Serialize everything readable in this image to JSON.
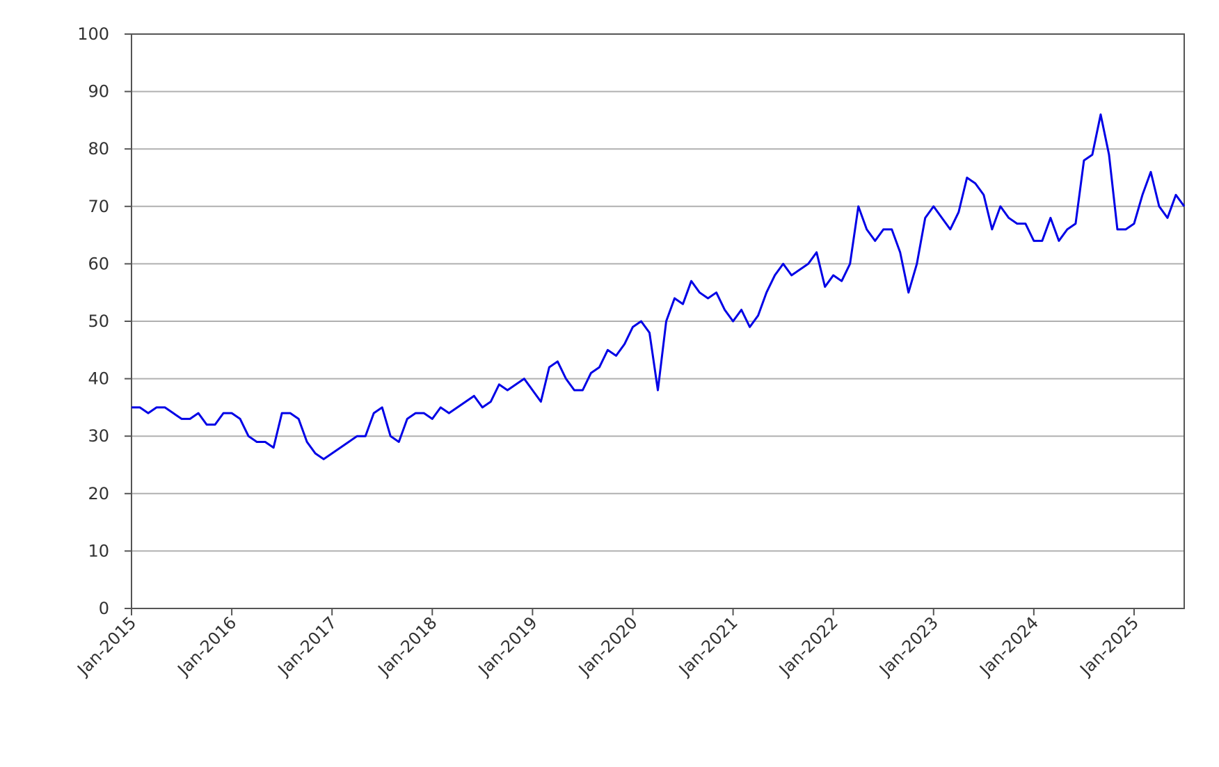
{
  "chart_data": {
    "type": "line",
    "x": [
      "2015-01",
      "2015-02",
      "2015-03",
      "2015-04",
      "2015-05",
      "2015-06",
      "2015-07",
      "2015-08",
      "2015-09",
      "2015-10",
      "2015-11",
      "2015-12",
      "2016-01",
      "2016-02",
      "2016-03",
      "2016-04",
      "2016-05",
      "2016-06",
      "2016-07",
      "2016-08",
      "2016-09",
      "2016-10",
      "2016-11",
      "2016-12",
      "2017-01",
      "2017-02",
      "2017-03",
      "2017-04",
      "2017-05",
      "2017-06",
      "2017-07",
      "2017-08",
      "2017-09",
      "2017-10",
      "2017-11",
      "2017-12",
      "2018-01",
      "2018-02",
      "2018-03",
      "2018-04",
      "2018-05",
      "2018-06",
      "2018-07",
      "2018-08",
      "2018-09",
      "2018-10",
      "2018-11",
      "2018-12",
      "2019-01",
      "2019-02",
      "2019-03",
      "2019-04",
      "2019-05",
      "2019-06",
      "2019-07",
      "2019-08",
      "2019-09",
      "2019-10",
      "2019-11",
      "2019-12",
      "2020-01",
      "2020-02",
      "2020-03",
      "2020-04",
      "2020-05",
      "2020-06",
      "2020-07",
      "2020-08",
      "2020-09",
      "2020-10",
      "2020-11",
      "2020-12",
      "2021-01",
      "2021-02",
      "2021-03",
      "2021-04",
      "2021-05",
      "2021-06",
      "2021-07",
      "2021-08",
      "2021-09",
      "2021-10",
      "2021-11",
      "2021-12",
      "2022-01",
      "2022-02",
      "2022-03",
      "2022-04",
      "2022-05",
      "2022-06",
      "2022-07",
      "2022-08",
      "2022-09",
      "2022-10",
      "2022-11",
      "2022-12",
      "2023-01",
      "2023-02",
      "2023-03",
      "2023-04",
      "2023-05",
      "2023-06",
      "2023-07",
      "2023-08",
      "2023-09",
      "2023-10",
      "2023-11",
      "2023-12",
      "2024-01",
      "2024-02",
      "2024-03",
      "2024-04",
      "2024-05",
      "2024-06",
      "2024-07",
      "2024-08",
      "2024-09",
      "2024-10",
      "2024-11",
      "2024-12",
      "2025-01",
      "2025-02",
      "2025-03",
      "2025-04",
      "2025-05",
      "2025-06",
      "2025-07"
    ],
    "series": [
      {
        "color": "#0000e6",
        "values": [
          35,
          35,
          34,
          35,
          35,
          34,
          33,
          33,
          34,
          32,
          32,
          34,
          34,
          33,
          30,
          29,
          29,
          28,
          34,
          34,
          33,
          29,
          27,
          26,
          27,
          28,
          29,
          30,
          30,
          34,
          35,
          30,
          29,
          33,
          34,
          34,
          33,
          35,
          34,
          35,
          36,
          37,
          35,
          36,
          39,
          38,
          39,
          40,
          38,
          36,
          42,
          43,
          40,
          38,
          38,
          41,
          42,
          45,
          44,
          46,
          49,
          50,
          48,
          38,
          50,
          54,
          53,
          57,
          55,
          54,
          55,
          52,
          50,
          52,
          49,
          51,
          55,
          58,
          60,
          58,
          59,
          60,
          62,
          56,
          58,
          57,
          60,
          70,
          66,
          64,
          66,
          66,
          62,
          55,
          60,
          68,
          70,
          68,
          66,
          69,
          75,
          74,
          72,
          66,
          70,
          68,
          67,
          67,
          64,
          64,
          68,
          64,
          66,
          67,
          78,
          79,
          86,
          79,
          66,
          66,
          67,
          72,
          76,
          70,
          68,
          72,
          70
        ]
      }
    ],
    "xlim": [
      "2015-01",
      "2025-07"
    ],
    "xticks": [
      {
        "value": "2015-01",
        "label": "Jan-2015"
      },
      {
        "value": "2016-01",
        "label": "Jan-2016"
      },
      {
        "value": "2017-01",
        "label": "Jan-2017"
      },
      {
        "value": "2018-01",
        "label": "Jan-2018"
      },
      {
        "value": "2019-01",
        "label": "Jan-2019"
      },
      {
        "value": "2020-01",
        "label": "Jan-2020"
      },
      {
        "value": "2021-01",
        "label": "Jan-2021"
      },
      {
        "value": "2022-01",
        "label": "Jan-2022"
      },
      {
        "value": "2023-01",
        "label": "Jan-2023"
      },
      {
        "value": "2024-01",
        "label": "Jan-2024"
      },
      {
        "value": "2025-01",
        "label": "Jan-2025"
      }
    ],
    "ylim": [
      0,
      100
    ],
    "yticks": [
      0,
      10,
      20,
      30,
      40,
      50,
      60,
      70,
      80,
      90,
      100
    ],
    "grid": true
  }
}
